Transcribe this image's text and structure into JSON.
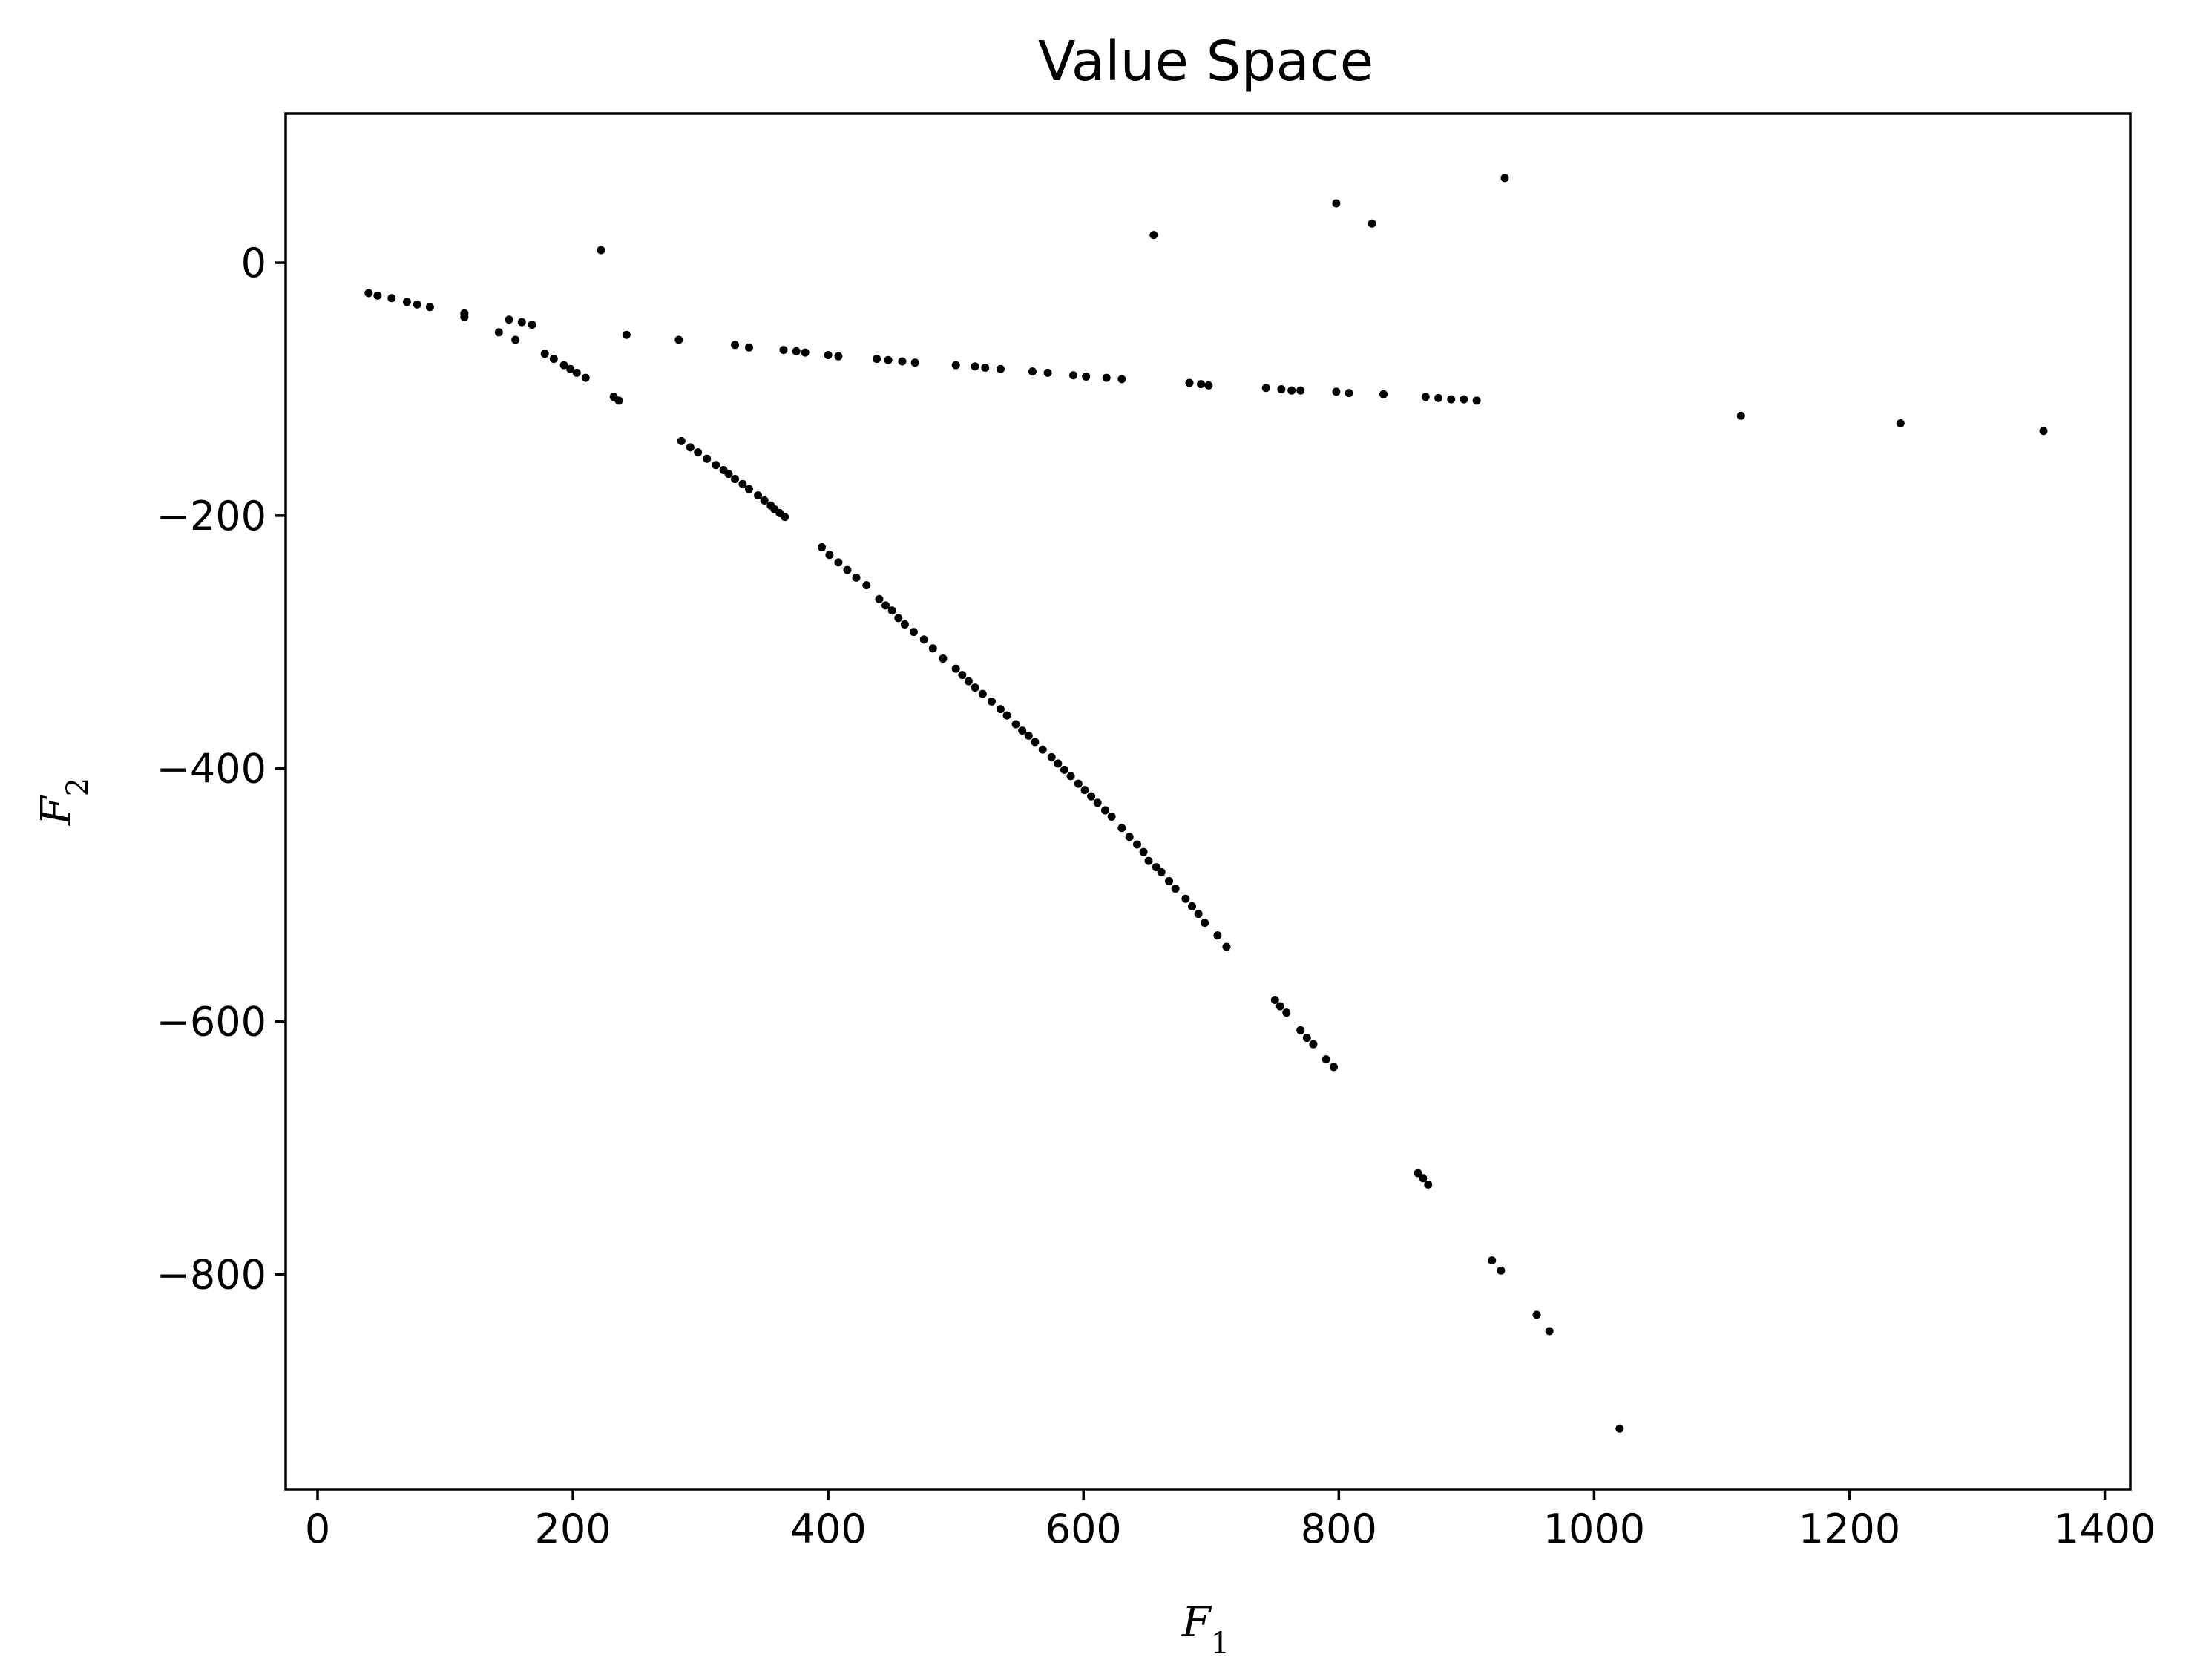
{
  "chart_data": {
    "type": "scatter",
    "title": "Value Space",
    "xlabel": "F",
    "xlabel_sub": "1",
    "ylabel": "F",
    "ylabel_sub": "2",
    "xlim": [
      -25,
      1420
    ],
    "ylim": [
      -970,
      118
    ],
    "xticks": [
      0,
      200,
      400,
      600,
      800,
      1000,
      1200,
      1400
    ],
    "yticks": [
      0,
      -200,
      -400,
      -600,
      -800
    ],
    "xtick_labels": [
      "0",
      "200",
      "400",
      "600",
      "800",
      "1000",
      "1200",
      "1400"
    ],
    "ytick_labels": [
      "0",
      "−200",
      "−400",
      "−600",
      "−800"
    ],
    "grid": false,
    "marker_color": "#000000",
    "series": [
      {
        "name": "",
        "points": [
          [
            40,
            -24
          ],
          [
            47,
            -26
          ],
          [
            58,
            -28
          ],
          [
            70,
            -31
          ],
          [
            78,
            -33
          ],
          [
            88,
            -35
          ],
          [
            115,
            -40
          ],
          [
            115,
            -43
          ],
          [
            142,
            -55
          ],
          [
            150,
            -45
          ],
          [
            155,
            -61
          ],
          [
            160,
            -47
          ],
          [
            168,
            -49
          ],
          [
            178,
            -72
          ],
          [
            185,
            -76
          ],
          [
            193,
            -81
          ],
          [
            198,
            -84
          ],
          [
            203,
            -87
          ],
          [
            210,
            -91
          ],
          [
            232,
            -106
          ],
          [
            236,
            -109
          ],
          [
            242,
            -57
          ],
          [
            283,
            -61
          ],
          [
            285,
            -141
          ],
          [
            292,
            -146
          ],
          [
            298,
            -150
          ],
          [
            305,
            -155
          ],
          [
            312,
            -160
          ],
          [
            318,
            -164
          ],
          [
            322,
            -167
          ],
          [
            327,
            -171
          ],
          [
            333,
            -175
          ],
          [
            338,
            -179
          ],
          [
            345,
            -184
          ],
          [
            350,
            -188
          ],
          [
            355,
            -192
          ],
          [
            358,
            -195
          ],
          [
            362,
            -198
          ],
          [
            366,
            -201
          ],
          [
            395,
            -225
          ],
          [
            401,
            -231
          ],
          [
            408,
            -237
          ],
          [
            415,
            -243
          ],
          [
            422,
            -249
          ],
          [
            430,
            -255
          ],
          [
            440,
            -266
          ],
          [
            445,
            -271
          ],
          [
            450,
            -275
          ],
          [
            455,
            -281
          ],
          [
            460,
            -286
          ],
          [
            467,
            -292
          ],
          [
            475,
            -298
          ],
          [
            482,
            -305
          ],
          [
            490,
            -313
          ],
          [
            500,
            -321
          ],
          [
            505,
            -326
          ],
          [
            510,
            -331
          ],
          [
            515,
            -336
          ],
          [
            521,
            -341
          ],
          [
            528,
            -347
          ],
          [
            535,
            -353
          ],
          [
            540,
            -358
          ],
          [
            547,
            -365
          ],
          [
            552,
            -370
          ],
          [
            557,
            -374
          ],
          [
            562,
            -379
          ],
          [
            568,
            -385
          ],
          [
            575,
            -391
          ],
          [
            580,
            -396
          ],
          [
            585,
            -401
          ],
          [
            590,
            -406
          ],
          [
            596,
            -412
          ],
          [
            601,
            -417
          ],
          [
            606,
            -422
          ],
          [
            611,
            -427
          ],
          [
            617,
            -433
          ],
          [
            622,
            -438
          ],
          [
            630,
            -447
          ],
          [
            636,
            -454
          ],
          [
            642,
            -460
          ],
          [
            647,
            -466
          ],
          [
            651,
            -473
          ],
          [
            657,
            -478
          ],
          [
            661,
            -482
          ],
          [
            667,
            -489
          ],
          [
            672,
            -495
          ],
          [
            680,
            -503
          ],
          [
            685,
            -509
          ],
          [
            690,
            -515
          ],
          [
            695,
            -522
          ],
          [
            705,
            -532
          ],
          [
            712,
            -541
          ],
          [
            750,
            -583
          ],
          [
            754,
            -588
          ],
          [
            759,
            -593
          ],
          [
            770,
            -607
          ],
          [
            775,
            -613
          ],
          [
            780,
            -618
          ],
          [
            790,
            -630
          ],
          [
            796,
            -636
          ],
          [
            862,
            -720
          ],
          [
            866,
            -724
          ],
          [
            870,
            -729
          ],
          [
            920,
            -789
          ],
          [
            927,
            -797
          ],
          [
            955,
            -832
          ],
          [
            965,
            -845
          ],
          [
            1020,
            -922
          ],
          [
            222,
            10
          ],
          [
            655,
            22
          ],
          [
            798,
            47
          ],
          [
            826,
            31
          ],
          [
            930,
            67
          ],
          [
            327,
            -65
          ],
          [
            338,
            -67
          ],
          [
            365,
            -69
          ],
          [
            375,
            -70
          ],
          [
            382,
            -71
          ],
          [
            400,
            -73
          ],
          [
            408,
            -74
          ],
          [
            438,
            -76
          ],
          [
            447,
            -77
          ],
          [
            458,
            -78
          ],
          [
            468,
            -79
          ],
          [
            500,
            -81
          ],
          [
            515,
            -82
          ],
          [
            523,
            -83
          ],
          [
            535,
            -84
          ],
          [
            560,
            -86
          ],
          [
            572,
            -87
          ],
          [
            592,
            -89
          ],
          [
            602,
            -90
          ],
          [
            618,
            -91
          ],
          [
            630,
            -92
          ],
          [
            683,
            -95
          ],
          [
            692,
            -96
          ],
          [
            698,
            -97
          ],
          [
            743,
            -99
          ],
          [
            755,
            -100
          ],
          [
            763,
            -101
          ],
          [
            770,
            -101
          ],
          [
            798,
            -102
          ],
          [
            808,
            -103
          ],
          [
            835,
            -104
          ],
          [
            868,
            -106
          ],
          [
            878,
            -107
          ],
          [
            888,
            -108
          ],
          [
            898,
            -108
          ],
          [
            908,
            -109
          ],
          [
            1115,
            -121
          ],
          [
            1240,
            -127
          ],
          [
            1352,
            -133
          ]
        ]
      }
    ]
  }
}
